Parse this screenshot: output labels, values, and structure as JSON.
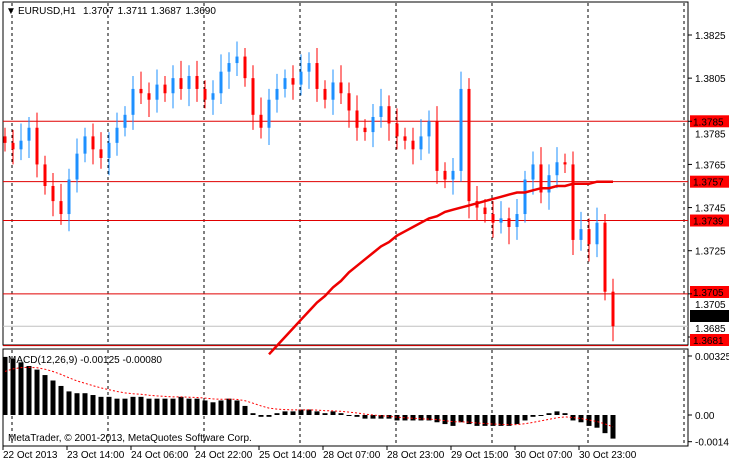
{
  "window": {
    "symbol_label": "EURUSD,H1",
    "open": "1.3707",
    "high": "1.3711",
    "low": "1.3687",
    "close": "1.3690"
  },
  "colors": {
    "bull": "#1e90ff",
    "bear": "#ff0000",
    "level_line": "#e00000",
    "ma": "#ee0000",
    "bid_line": "#c0c0c0"
  },
  "price_axis": {
    "ticks": [
      "1.3825",
      "1.3805",
      "1.3785",
      "1.3765",
      "1.3745",
      "1.3725",
      "1.3705",
      "1.3685"
    ],
    "range": [
      1.3681,
      1.3841
    ]
  },
  "levels": [
    {
      "price": 1.3785,
      "label": "1.3785"
    },
    {
      "price": 1.3757,
      "label": "1.3757"
    },
    {
      "price": 1.3739,
      "label": "1.3739"
    },
    {
      "price": 1.3705,
      "label": "1.3705"
    },
    {
      "price": 1.3681,
      "label": "1.3681"
    }
  ],
  "bid": {
    "price": 1.369,
    "label": "1.3690"
  },
  "closes": [
    1.3775,
    1.3772,
    1.3776,
    1.3782,
    1.3765,
    1.3755,
    1.3748,
    1.3742,
    1.3758,
    1.377,
    1.3778,
    1.3772,
    1.3768,
    1.3775,
    1.3782,
    1.3788,
    1.38,
    1.3798,
    1.3795,
    1.3802,
    1.3798,
    1.3805,
    1.38,
    1.3806,
    1.38,
    1.3795,
    1.3798,
    1.3808,
    1.3812,
    1.3815,
    1.3805,
    1.3788,
    1.3782,
    1.3795,
    1.38,
    1.3805,
    1.3802,
    1.3808,
    1.3812,
    1.38,
    1.3795,
    1.3803,
    1.3798,
    1.379,
    1.3782,
    1.378,
    1.3787,
    1.3792,
    1.3784,
    1.3778,
    1.3776,
    1.3772,
    1.3778,
    1.3785,
    1.3762,
    1.3758,
    1.3762,
    1.38,
    1.3748,
    1.3745,
    1.3742,
    1.3738,
    1.374,
    1.3736,
    1.3742,
    1.3758,
    1.3765,
    1.3752,
    1.376,
    1.3766,
    1.3765,
    1.373,
    1.3735,
    1.3728,
    1.3738,
    1.3706,
    1.369
  ],
  "ma_start_index": 33,
  "ma": [
    1.3677,
    1.3681,
    1.3685,
    1.3689,
    1.3693,
    1.3697,
    1.3701,
    1.3704,
    1.3708,
    1.3711,
    1.3715,
    1.3718,
    1.3721,
    1.3724,
    1.3727,
    1.3729,
    1.3732,
    1.3734,
    1.3736,
    1.3738,
    1.374,
    1.3741,
    1.3743,
    1.3744,
    1.3745,
    1.3746,
    1.3747,
    1.3748,
    1.3749,
    1.375,
    1.3751,
    1.3752,
    1.3752,
    1.3753,
    1.3754,
    1.3754,
    1.3755,
    1.3755,
    1.3756,
    1.3756,
    1.3756,
    1.3757,
    1.3757,
    1.3757
  ],
  "macd": {
    "label": "MACD(12,26,9) -0.00125 -0.00080",
    "ticks": [
      "0.00325",
      "0.00",
      "-0.00147"
    ],
    "values": [
      0.0032,
      0.0031,
      0.0029,
      0.0027,
      0.0025,
      0.0022,
      0.0019,
      0.0016,
      0.0013,
      0.0012,
      0.0012,
      0.0011,
      0.001,
      0.001,
      0.0009,
      0.0009,
      0.001,
      0.001,
      0.0009,
      0.0009,
      0.0009,
      0.0009,
      0.001,
      0.0009,
      0.0009,
      0.0008,
      0.0007,
      0.0008,
      0.0009,
      0.0008,
      0.0005,
      0.0001,
      -0.0001,
      -0.0001,
      0.0001,
      0.0002,
      0.0002,
      0.0003,
      0.0003,
      0.0002,
      0.0001,
      0.0002,
      0.0001,
      0.0,
      -0.0001,
      -0.0002,
      -0.0002,
      -0.0002,
      -0.0002,
      -0.0003,
      -0.0003,
      -0.0003,
      -0.0003,
      -0.0003,
      -0.0004,
      -0.0005,
      -0.0006,
      -0.0004,
      -0.0005,
      -0.0006,
      -0.0006,
      -0.0006,
      -0.0006,
      -0.0006,
      -0.0005,
      -0.0003,
      -0.0001,
      0.0,
      0.0001,
      0.0002,
      0.0001,
      -0.0003,
      -0.0004,
      -0.0006,
      -0.0007,
      -0.001,
      -0.0013
    ]
  },
  "copyright": "MetaTrader, © 2001-2013, MetaQuotes Software Corp.",
  "time_axis": [
    "22 Oct 2013",
    "23 Oct 14:00",
    "24 Oct 06:00",
    "24 Oct 22:00",
    "25 Oct 14:00",
    "28 Oct 07:00",
    "28 Oct 23:00",
    "29 Oct 15:00",
    "30 Oct 07:00",
    "30 Oct 23:00"
  ]
}
